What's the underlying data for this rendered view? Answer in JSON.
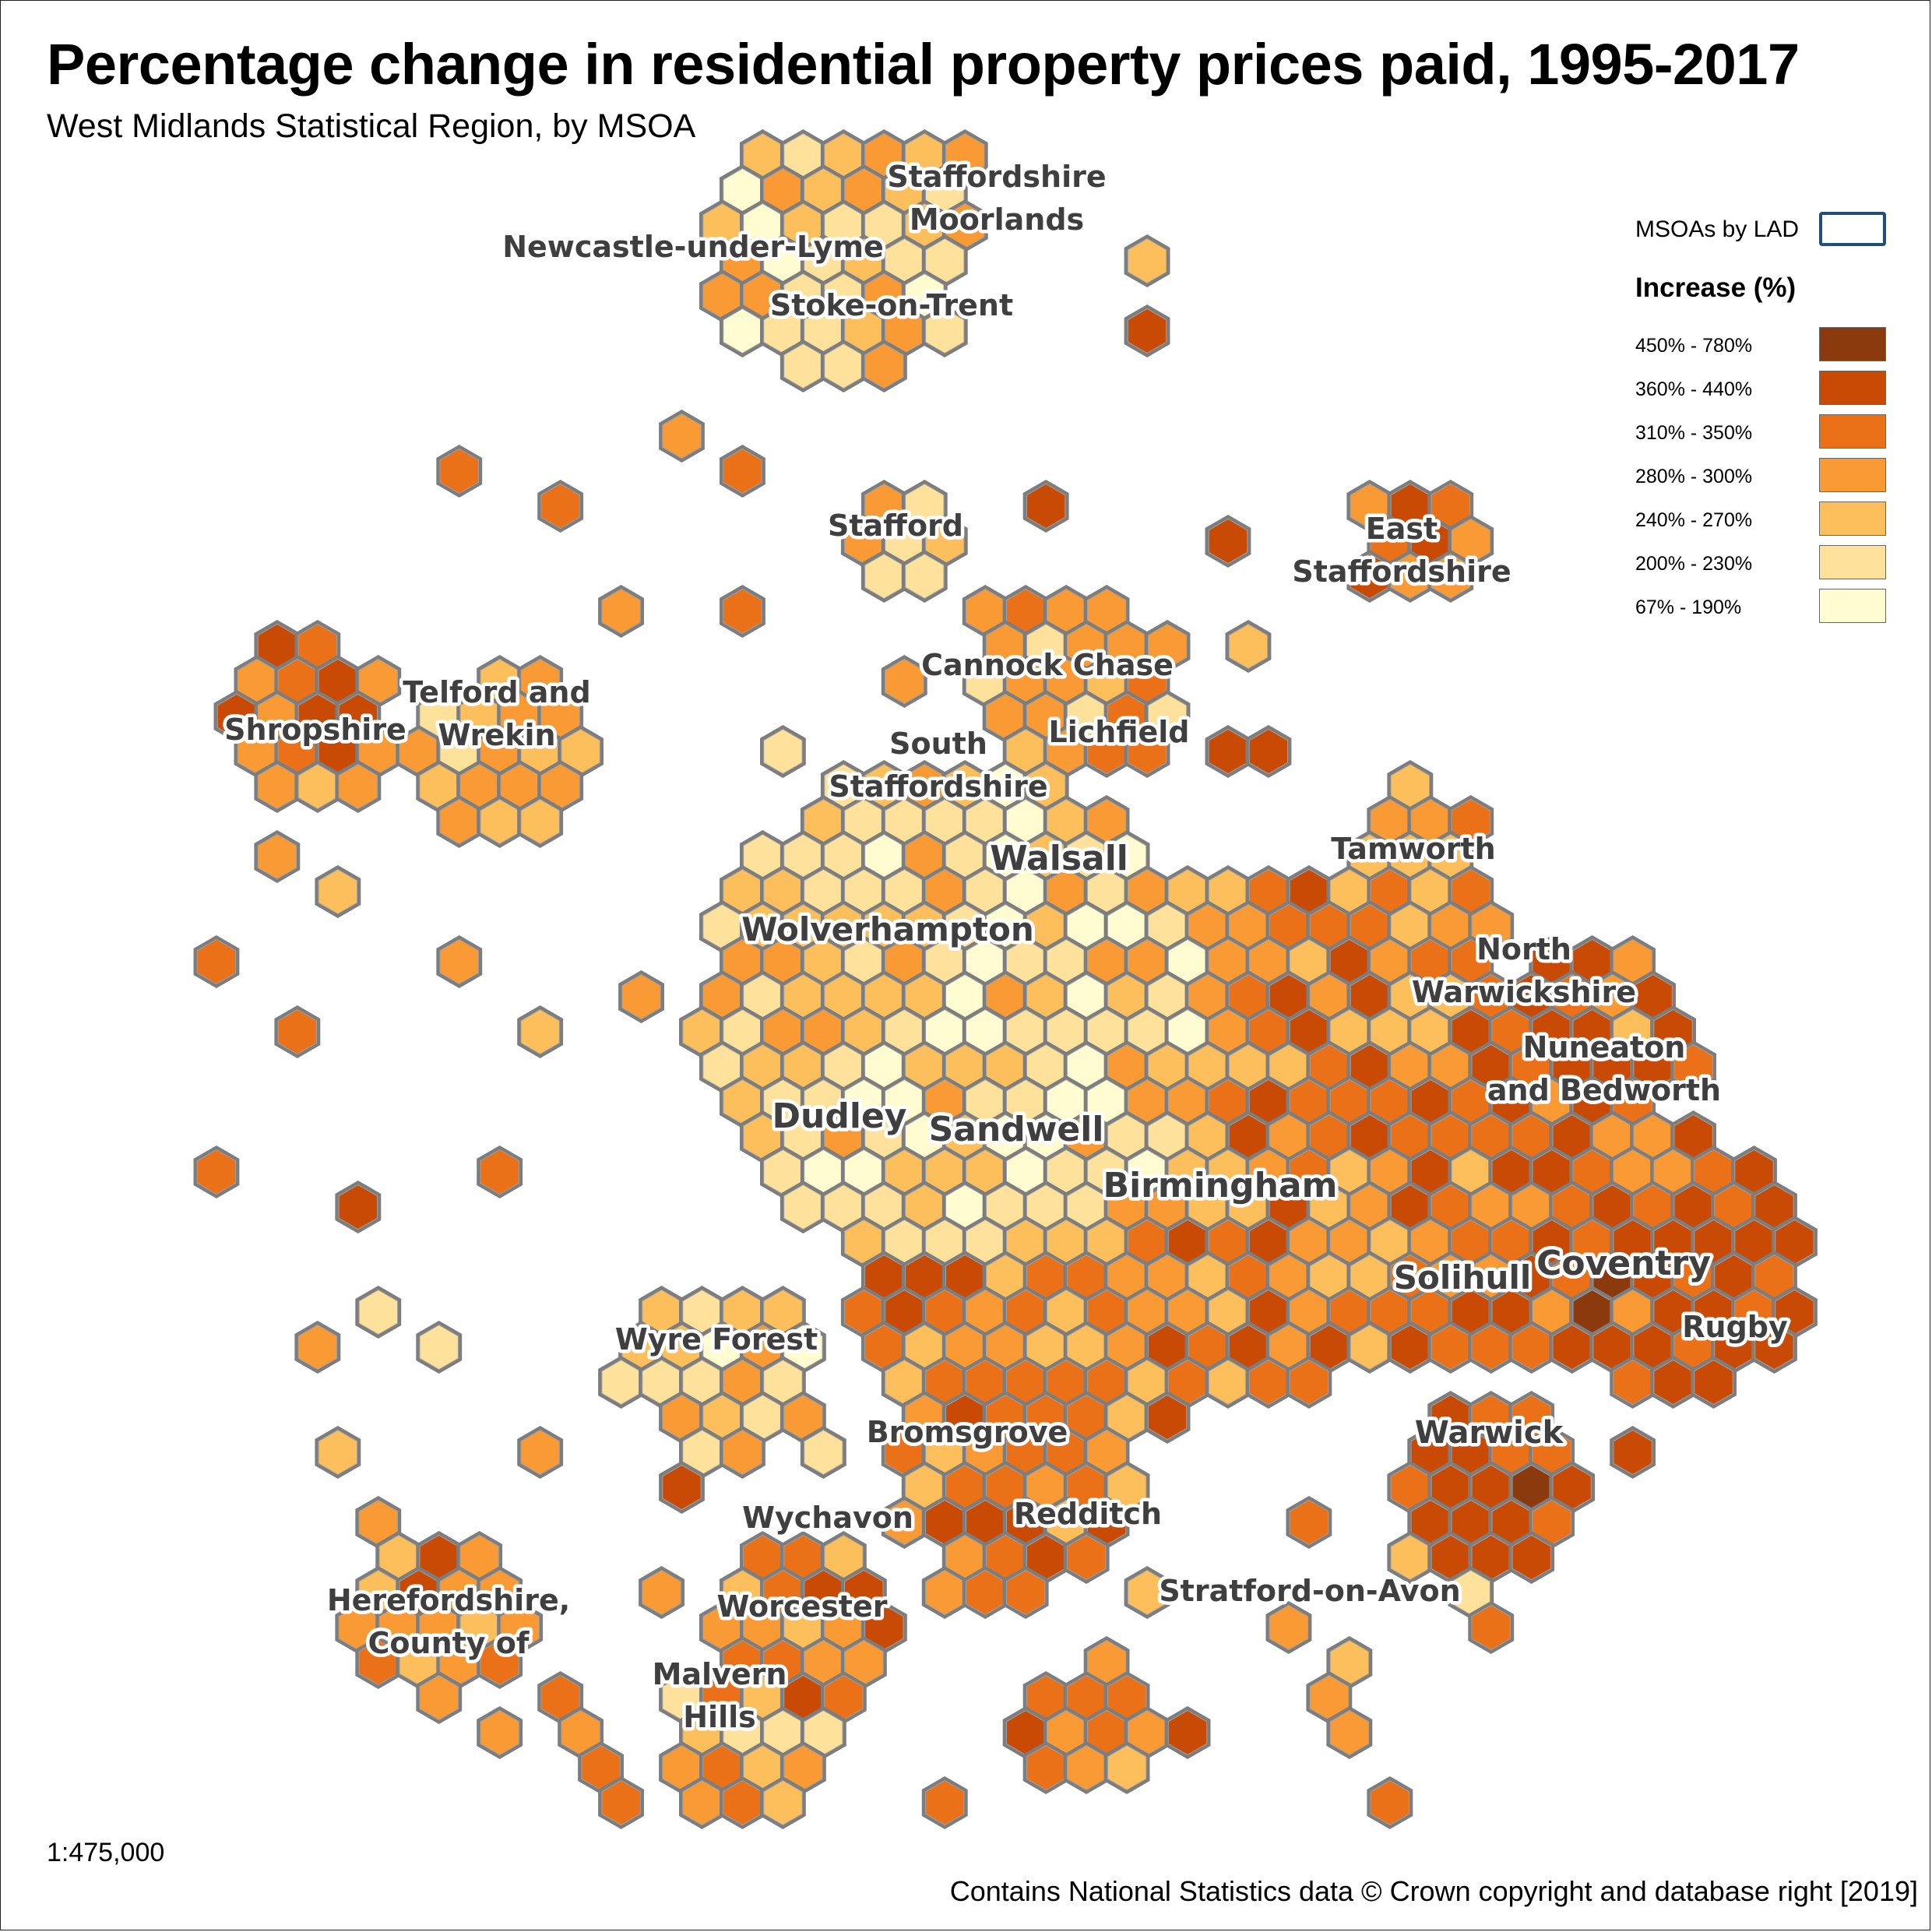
{
  "title": "Percentage change in residential property prices paid, 1995-2017",
  "subtitle": "West Midlands Statistical Region, by MSOA",
  "legend": {
    "boundary_label": "MSOAs by LAD",
    "boundary_color": "#1f4e79",
    "title": "Increase (%)",
    "classes": [
      {
        "label": "450% - 780%",
        "color": "#8b3a0e"
      },
      {
        "label": "360% - 440%",
        "color": "#c94a05"
      },
      {
        "label": "310% - 350%",
        "color": "#ea7118"
      },
      {
        "label": "280% - 300%",
        "color": "#f99a35"
      },
      {
        "label": "240% - 270%",
        "color": "#fdbf5c"
      },
      {
        "label": "200% - 230%",
        "color": "#fee19a"
      },
      {
        "label": "67% - 190%",
        "color": "#fffcd2"
      }
    ]
  },
  "region_labels": [
    {
      "id": "staffordshire-moorlands",
      "lines": [
        "Staffordshire",
        "Moorlands"
      ]
    },
    {
      "id": "newcastle-under-lyme",
      "lines": [
        "Newcastle-under-Lyme"
      ]
    },
    {
      "id": "stoke-on-trent",
      "lines": [
        "Stoke-on-Trent"
      ]
    },
    {
      "id": "stafford",
      "lines": [
        "Stafford"
      ]
    },
    {
      "id": "east-staffordshire",
      "lines": [
        "East",
        "Staffordshire"
      ]
    },
    {
      "id": "cannock-chase",
      "lines": [
        "Cannock Chase"
      ]
    },
    {
      "id": "telford-and-wrekin",
      "lines": [
        "Telford and",
        "Wrekin"
      ]
    },
    {
      "id": "shropshire",
      "lines": [
        "Shropshire"
      ]
    },
    {
      "id": "south-staffordshire",
      "lines": [
        "South",
        "Staffordshire"
      ]
    },
    {
      "id": "lichfield",
      "lines": [
        "Lichfield"
      ]
    },
    {
      "id": "walsall",
      "lines": [
        "Walsall"
      ]
    },
    {
      "id": "tamworth",
      "lines": [
        "Tamworth"
      ]
    },
    {
      "id": "wolverhampton",
      "lines": [
        "Wolverhampton"
      ]
    },
    {
      "id": "north-warwickshire",
      "lines": [
        "North",
        "Warwickshire"
      ]
    },
    {
      "id": "nuneaton-and-bedworth",
      "lines": [
        "Nuneaton",
        "and Bedworth"
      ]
    },
    {
      "id": "dudley",
      "lines": [
        "Dudley"
      ]
    },
    {
      "id": "sandwell",
      "lines": [
        "Sandwell"
      ]
    },
    {
      "id": "birmingham",
      "lines": [
        "Birmingham"
      ]
    },
    {
      "id": "solihull",
      "lines": [
        "Solihull"
      ]
    },
    {
      "id": "coventry",
      "lines": [
        "Coventry"
      ]
    },
    {
      "id": "rugby",
      "lines": [
        "Rugby"
      ]
    },
    {
      "id": "wyre-forest",
      "lines": [
        "Wyre Forest"
      ]
    },
    {
      "id": "bromsgrove",
      "lines": [
        "Bromsgrove"
      ]
    },
    {
      "id": "warwick",
      "lines": [
        "Warwick"
      ]
    },
    {
      "id": "redditch",
      "lines": [
        "Redditch"
      ]
    },
    {
      "id": "wychavon",
      "lines": [
        "Wychavon"
      ]
    },
    {
      "id": "herefordshire",
      "lines": [
        "Herefordshire,",
        "County of"
      ]
    },
    {
      "id": "worcester",
      "lines": [
        "Worcester"
      ]
    },
    {
      "id": "stratford-on-avon",
      "lines": [
        "Stratford-on-Avon"
      ]
    },
    {
      "id": "malvern-hills",
      "lines": [
        "Malvern",
        "Hills"
      ]
    }
  ],
  "scale": "1:475,000",
  "credit": "Contains National Statistics data © Crown copyright and database right [2019]"
}
